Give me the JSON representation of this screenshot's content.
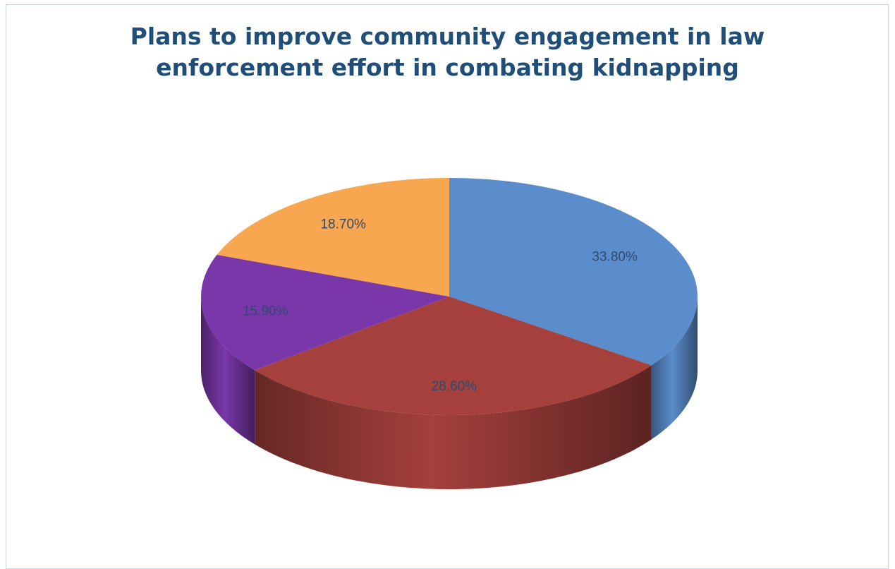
{
  "chart_data": {
    "type": "pie",
    "title": "Plans to improve community engagement in law\nenforcement effort in combating kidnapping",
    "slices": [
      {
        "value": 33.8,
        "label": "33.80%",
        "color": "#5b8ccc"
      },
      {
        "value": 28.6,
        "label": "28.60%",
        "color": "#a5403c"
      },
      {
        "value": 15.9,
        "label": "15.90%",
        "color": "#7a37a9"
      },
      {
        "value": 18.7,
        "label": "18.70%",
        "color": "#f9a650"
      }
    ],
    "legend": "none",
    "style": "3d"
  }
}
